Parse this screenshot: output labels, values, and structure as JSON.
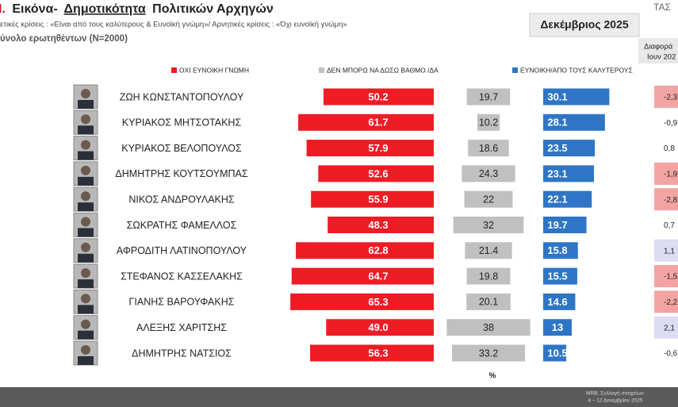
{
  "chart_data": {
    "type": "bar",
    "title_parts": [
      "Ι.",
      "Εικόνα-",
      "Δημοτικότητα",
      "Πολιτικών Αρχηγών"
    ],
    "subtitle": "ετικές κρίσεις : «Είναι από τους καλύτερους &  Ευνοϊκή γνώμη»/ Αρνητικές κρίσεις : «Όχι ευνοϊκή γνώμη»",
    "sample": "ύνολο ερωτηθέντων (N=2000)",
    "period": "Δεκέμβριος 2025",
    "logo": "ΤΑΣ",
    "diff_header": [
      "Διαφορά",
      "Ιουν 202"
    ],
    "unit": "%",
    "source": [
      "MRB, Συλλογή στοιχείων:",
      "4 – 12 Δεκεμβρίου 2025"
    ],
    "categories": [
      "ΖΩΗ ΚΩΝΣΤΑΝΤΟΠΟΥΛΟΥ",
      "ΚΥΡΙΑΚΟΣ ΜΗΤΣΟΤΑΚΗΣ",
      "ΚΥΡΙΑΚΟΣ ΒΕΛΟΠΟΥΛΟΣ",
      "ΔΗΜΗΤΡΗΣ ΚΟΥΤΣΟΥΜΠΑΣ",
      "ΝΙΚΟΣ ΑΝΔΡΟΥΛΑΚΗΣ",
      "ΣΩΚΡΑΤΗΣ ΦΑΜΕΛΛΟΣ",
      "ΑΦΡΟΔΙΤΗ ΛΑΤΙΝΟΠΟΥΛΟΥ",
      "ΣΤΕΦΑΝΟΣ ΚΑΣΣΕΛΑΚΗΣ",
      "ΓΙΑΝΗΣ ΒΑΡΟΥΦΑΚΗΣ",
      "ΑΛΕΞΗΣ ΧΑΡΙΤΣΗΣ",
      "ΔΗΜΗΤΡΗΣ ΝΑΤΣΙΟΣ"
    ],
    "series": [
      {
        "name": "ΟΧΙ ΕΥΝΟΙΚΗ ΓΝΩΜΗ",
        "color": "#ee1c25",
        "values": [
          50.2,
          61.7,
          57.9,
          52.6,
          55.9,
          48.3,
          62.8,
          64.7,
          65.3,
          49.0,
          56.3
        ],
        "value_labels": [
          "50.2",
          "61.7",
          "57.9",
          "52.6",
          "55.9",
          "48.3",
          "62.8",
          "64.7",
          "65.3",
          "49.0",
          "56.3"
        ]
      },
      {
        "name": "ΔΕΝ ΜΠΟΡΩ ΝΑ ΔΩΣΩ ΒΑΘΜΟ /ΔΑ",
        "color": "#c0c0c0",
        "values": [
          19.7,
          10.2,
          18.6,
          24.3,
          22,
          32,
          21.4,
          19.8,
          20.1,
          38,
          33.2
        ]
      },
      {
        "name": "ΕΥΝΟΙΚΗ/ΑΠΟ ΤΟΥΣ ΚΑΛΥΤΕΡΟΥΣ",
        "color": "#2e75c5",
        "values": [
          30.1,
          28.1,
          23.5,
          23.1,
          22.1,
          19.7,
          15.8,
          15.5,
          14.6,
          13,
          10.5
        ]
      }
    ],
    "diff_values": [
      -2.3,
      -0.9,
      0.8,
      -1.9,
      -2.8,
      0.7,
      1.1,
      -1.5,
      -2.2,
      2.1,
      -0.6
    ],
    "diff_labels": [
      "-2,3",
      "-0,9",
      "0,8",
      "-1,9",
      "-2,8",
      "0,7",
      "1,1",
      "-1,5",
      "-2,2",
      "2,1",
      "-0,6"
    ]
  }
}
